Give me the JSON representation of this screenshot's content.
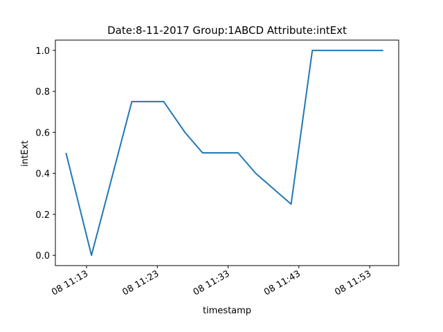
{
  "chart_data": {
    "type": "line",
    "title": "Date:8-11-2017  Group:1ABCD Attribute:intExt",
    "xlabel": "timestamp",
    "ylabel": "intExt",
    "x_unit": "minutes after 08 11:00",
    "x_ticks": [
      {
        "value": 13,
        "label": "08 11:13"
      },
      {
        "value": 23,
        "label": "08 11:23"
      },
      {
        "value": 33,
        "label": "08 11:33"
      },
      {
        "value": 43,
        "label": "08 11:43"
      },
      {
        "value": 53,
        "label": "08 11:53"
      }
    ],
    "y_ticks": [
      {
        "value": 0.0,
        "label": "0.0"
      },
      {
        "value": 0.2,
        "label": "0.2"
      },
      {
        "value": 0.4,
        "label": "0.4"
      },
      {
        "value": 0.6,
        "label": "0.6"
      },
      {
        "value": 0.8,
        "label": "0.8"
      },
      {
        "value": 1.0,
        "label": "1.0"
      }
    ],
    "xlim": [
      8.6,
      57.1
    ],
    "ylim": [
      -0.05,
      1.05
    ],
    "grid": false,
    "series": [
      {
        "name": "",
        "color": "#1f77b4",
        "x": [
          10.1,
          13.7,
          19.4,
          23.9,
          26.9,
          29.4,
          34.4,
          36.9,
          41.9,
          44.9,
          49.9,
          54.9
        ],
        "y": [
          0.5,
          0.0,
          0.75,
          0.75,
          0.6,
          0.5,
          0.5,
          0.4,
          0.25,
          1.0,
          1.0,
          1.0
        ]
      }
    ]
  }
}
